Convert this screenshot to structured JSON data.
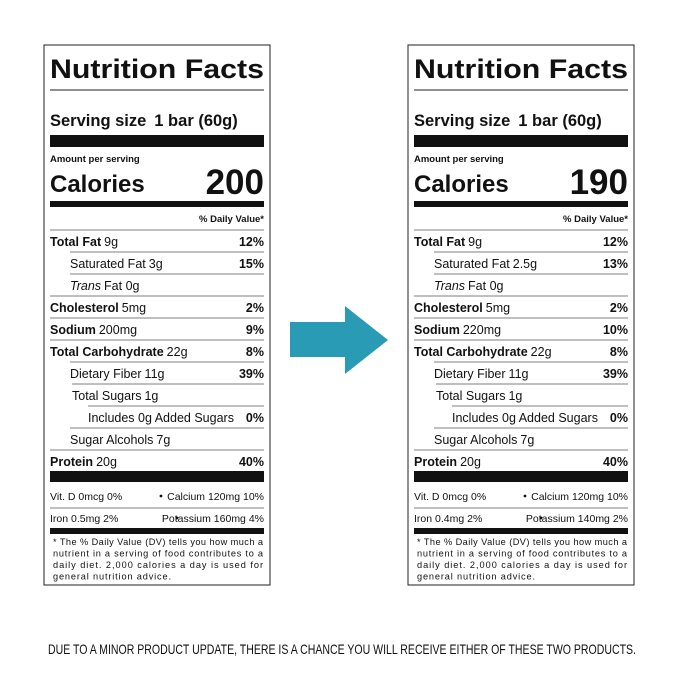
{
  "labels": [
    {
      "title": "Nutrition Facts",
      "serving_label": "Serving size",
      "serving_size": "1 bar (60g)",
      "amount_per_serving": "Amount per serving",
      "calories_label": "Calories",
      "calories": "200",
      "daily_value_header": "% Daily Value*",
      "rows": [
        {
          "name": "Total Fat",
          "amount": "9g",
          "dv": "12%"
        },
        {
          "name": "Saturated Fat",
          "amount": "3g",
          "dv": "15%"
        },
        {
          "name": "Trans",
          "amount": "Fat 0g"
        },
        {
          "name": "Cholesterol",
          "amount": "5mg",
          "dv": "2%"
        },
        {
          "name": "Sodium",
          "amount": "200mg",
          "dv": "9%"
        },
        {
          "name": "Total Carbohydrate",
          "amount": "22g",
          "dv": "8%"
        },
        {
          "name": "Dietary Fiber",
          "amount": "11g",
          "dv": "39%"
        },
        {
          "name": "Total Sugars",
          "amount": "1g"
        },
        {
          "name": "Includes 0g Added Sugars",
          "dv": "0%"
        },
        {
          "name": "Sugar Alcohols",
          "amount": "7g"
        },
        {
          "name": "Protein",
          "amount": "20g",
          "dv": "40%"
        }
      ],
      "vitamins": [
        [
          "Vit. D 0mcg 0%",
          "Calcium 120mg 10%"
        ],
        [
          "Iron 0.5mg 2%",
          "Potassium 160mg 4%"
        ]
      ],
      "footnote": [
        "* The % Daily Value (DV) tells you how much a",
        "nutrient in a serving of food contributes to a",
        "daily diet. 2,000 calories a day is used for",
        "general nutrition advice."
      ]
    },
    {
      "title": "Nutrition Facts",
      "serving_label": "Serving size",
      "serving_size": "1 bar (60g)",
      "amount_per_serving": "Amount per serving",
      "calories_label": "Calories",
      "calories": "190",
      "daily_value_header": "% Daily Value*",
      "rows": [
        {
          "name": "Total Fat",
          "amount": "9g",
          "dv": "12%"
        },
        {
          "name": "Saturated Fat",
          "amount": "2.5g",
          "dv": "13%"
        },
        {
          "name": "Trans",
          "amount": "Fat 0g"
        },
        {
          "name": "Cholesterol",
          "amount": "5mg",
          "dv": "2%"
        },
        {
          "name": "Sodium",
          "amount": "220mg",
          "dv": "10%"
        },
        {
          "name": "Total Carbohydrate",
          "amount": "22g",
          "dv": "8%"
        },
        {
          "name": "Dietary Fiber",
          "amount": "11g",
          "dv": "39%"
        },
        {
          "name": "Total Sugars",
          "amount": "1g"
        },
        {
          "name": "Includes 0g Added Sugars",
          "dv": "0%"
        },
        {
          "name": "Sugar Alcohols",
          "amount": "7g"
        },
        {
          "name": "Protein",
          "amount": "20g",
          "dv": "40%"
        }
      ],
      "vitamins": [
        [
          "Vit. D 0mcg 0%",
          "Calcium 120mg 10%"
        ],
        [
          "Iron 0.4mg 2%",
          "Potassium 140mg 2%"
        ]
      ],
      "footnote": [
        "* The % Daily Value (DV) tells you how much a",
        "nutrient in a serving of food contributes to a",
        "daily diet. 2,000 calories a day is used for",
        "general nutrition advice."
      ]
    }
  ],
  "caption": "DUE TO A MINOR PRODUCT UPDATE, THERE IS A CHANCE YOU WILL RECEIVE EITHER OF THESE TWO PRODUCTS."
}
